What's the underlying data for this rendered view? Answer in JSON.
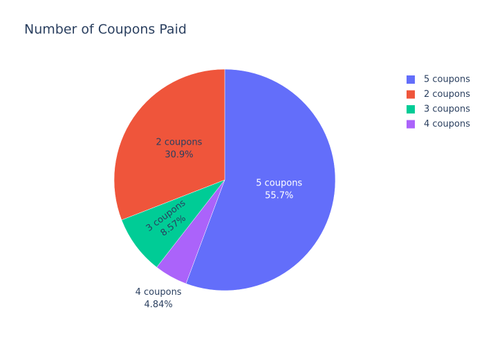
{
  "chart_data": {
    "type": "pie",
    "title": "Number of Coupons Paid",
    "categories": [
      "5 coupons",
      "2 coupons",
      "3 coupons",
      "4 coupons"
    ],
    "values": [
      55.7,
      30.9,
      8.57,
      4.84
    ],
    "value_labels": [
      "55.7%",
      "30.9%",
      "8.57%",
      "4.84%"
    ],
    "colors": [
      "#636efa",
      "#ef553b",
      "#00cc96",
      "#ab63fa"
    ],
    "direction": "counterclockwise",
    "legend": "top-right"
  }
}
